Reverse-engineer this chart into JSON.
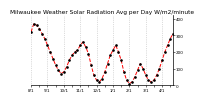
{
  "title": "Milwaukee Weather Solar Radiation Avg per Day W/m2/minute",
  "title_fontsize": 4.2,
  "line_color": "red",
  "marker_color": "black",
  "line_style": "--",
  "marker": ".",
  "marker_size": 1.8,
  "line_width": 0.7,
  "background_color": "#ffffff",
  "grid_color": "#bbbbbb",
  "ylim": [
    0,
    420
  ],
  "xlim": [
    0,
    52
  ],
  "values": [
    320,
    370,
    360,
    340,
    310,
    280,
    240,
    200,
    160,
    120,
    90,
    70,
    80,
    110,
    150,
    180,
    200,
    210,
    240,
    260,
    230,
    190,
    120,
    60,
    30,
    20,
    40,
    80,
    130,
    180,
    210,
    240,
    200,
    150,
    80,
    30,
    10,
    20,
    50,
    90,
    130,
    100,
    60,
    30,
    20,
    30,
    60,
    100,
    150,
    200,
    240,
    280,
    310
  ],
  "ytick_values": [
    0,
    100,
    200,
    300,
    400
  ],
  "ytick_labels": [
    "0",
    "100",
    "200",
    "300",
    "400"
  ],
  "tick_fontsize": 3.0,
  "grid_positions": [
    0,
    6,
    12,
    18,
    24,
    30,
    36,
    42,
    48
  ],
  "xtick_positions": [
    0,
    3,
    6,
    9,
    12,
    15,
    18,
    21,
    24,
    27,
    30,
    33,
    36,
    39,
    42,
    45,
    48,
    51
  ],
  "xtick_labels": [
    "8/1",
    "",
    "9/1",
    "",
    "10/1",
    "",
    "11/1",
    "",
    "12/1",
    "",
    "1/1",
    "",
    "2/1",
    "",
    "3/1",
    "",
    "4/1",
    ""
  ]
}
